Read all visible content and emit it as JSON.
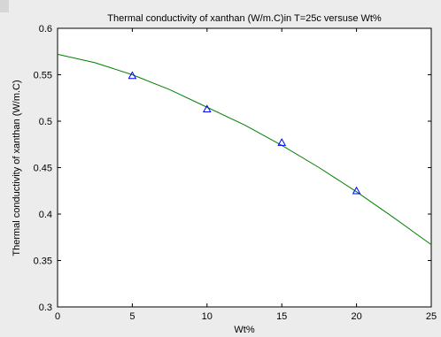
{
  "chart_data": {
    "type": "line",
    "title": "Thermal conductivity of xanthan (W/m.C)in T=25c versuse Wt%",
    "xlabel": "Wt%",
    "ylabel": "Thermal conductivity of xanthan (W/m.C)",
    "xlim": [
      0,
      25
    ],
    "ylim": [
      0.3,
      0.6
    ],
    "xticks": [
      0,
      5,
      10,
      15,
      20,
      25
    ],
    "yticks": [
      0.3,
      0.35,
      0.4,
      0.45,
      0.5,
      0.55,
      0.6
    ],
    "xtick_labels": [
      "0",
      "5",
      "10",
      "15",
      "20",
      "25"
    ],
    "ytick_labels": [
      "0.3",
      "0.35",
      "0.4",
      "0.45",
      "0.5",
      "0.55",
      "0.6"
    ],
    "grid": false,
    "legend": null,
    "series": [
      {
        "kind": "markers",
        "marker": "triangle-up",
        "color": "#0000ff",
        "x": [
          5,
          10,
          15,
          20
        ],
        "y": [
          0.549,
          0.513,
          0.477,
          0.425
        ]
      },
      {
        "kind": "line",
        "color": "#008000",
        "x": [
          0,
          2.5,
          5,
          7.5,
          10,
          12.5,
          15,
          17.5,
          20,
          22.5,
          25
        ],
        "y": [
          0.572,
          0.563,
          0.55,
          0.534,
          0.515,
          0.496,
          0.474,
          0.45,
          0.424,
          0.396,
          0.367
        ]
      }
    ]
  }
}
